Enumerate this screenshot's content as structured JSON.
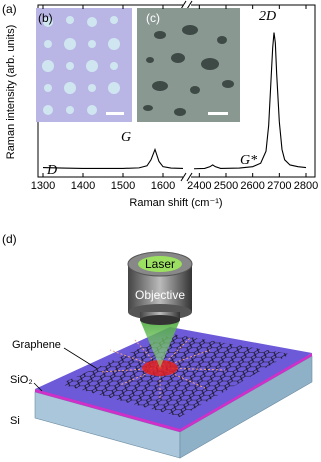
{
  "chart_data": {
    "type": "line",
    "panel_label": "(a)",
    "y_label": "Raman intensity (arb. units)",
    "x_label": "Raman shift (cm⁻¹)",
    "ylim": [
      0,
      100
    ],
    "x_segments": [
      {
        "xlim": [
          1300,
          1650
        ],
        "xticks": [
          1300,
          1400,
          1500,
          1600
        ]
      },
      {
        "xlim": [
          2380,
          2800
        ],
        "xticks": [
          2400,
          2500,
          2600,
          2700,
          2800
        ]
      }
    ],
    "series": [
      {
        "color": "#000000",
        "x": [
          1300,
          1350,
          1400,
          1450,
          1500,
          1540,
          1560,
          1570,
          1580,
          1590,
          1600,
          1620,
          1650,
          null,
          2380,
          2420,
          2440,
          2450,
          2460,
          2480,
          2550,
          2600,
          2630,
          2650,
          2660,
          2670,
          2675,
          2680,
          2685,
          2690,
          2700,
          2710,
          2720,
          2740,
          2770,
          2800
        ],
        "values": [
          5.5,
          5.2,
          5,
          5,
          5,
          5.3,
          6.5,
          10,
          16,
          9,
          6,
          5.2,
          5,
          null,
          4.8,
          5,
          6,
          7,
          6,
          5,
          5.2,
          6,
          8,
          15,
          30,
          60,
          75,
          84,
          78,
          60,
          32,
          16,
          10,
          7,
          6,
          5.5
        ]
      }
    ],
    "annotations": [
      "D",
      "G",
      "G*",
      "2D"
    ],
    "insets": [
      "(b)",
      "(c)"
    ]
  },
  "diagram": {
    "panel_label": "(d)",
    "laser": "Laser",
    "objective": "Objective",
    "graphene": "Graphene",
    "sio2": "SiO₂",
    "si": "Si"
  }
}
